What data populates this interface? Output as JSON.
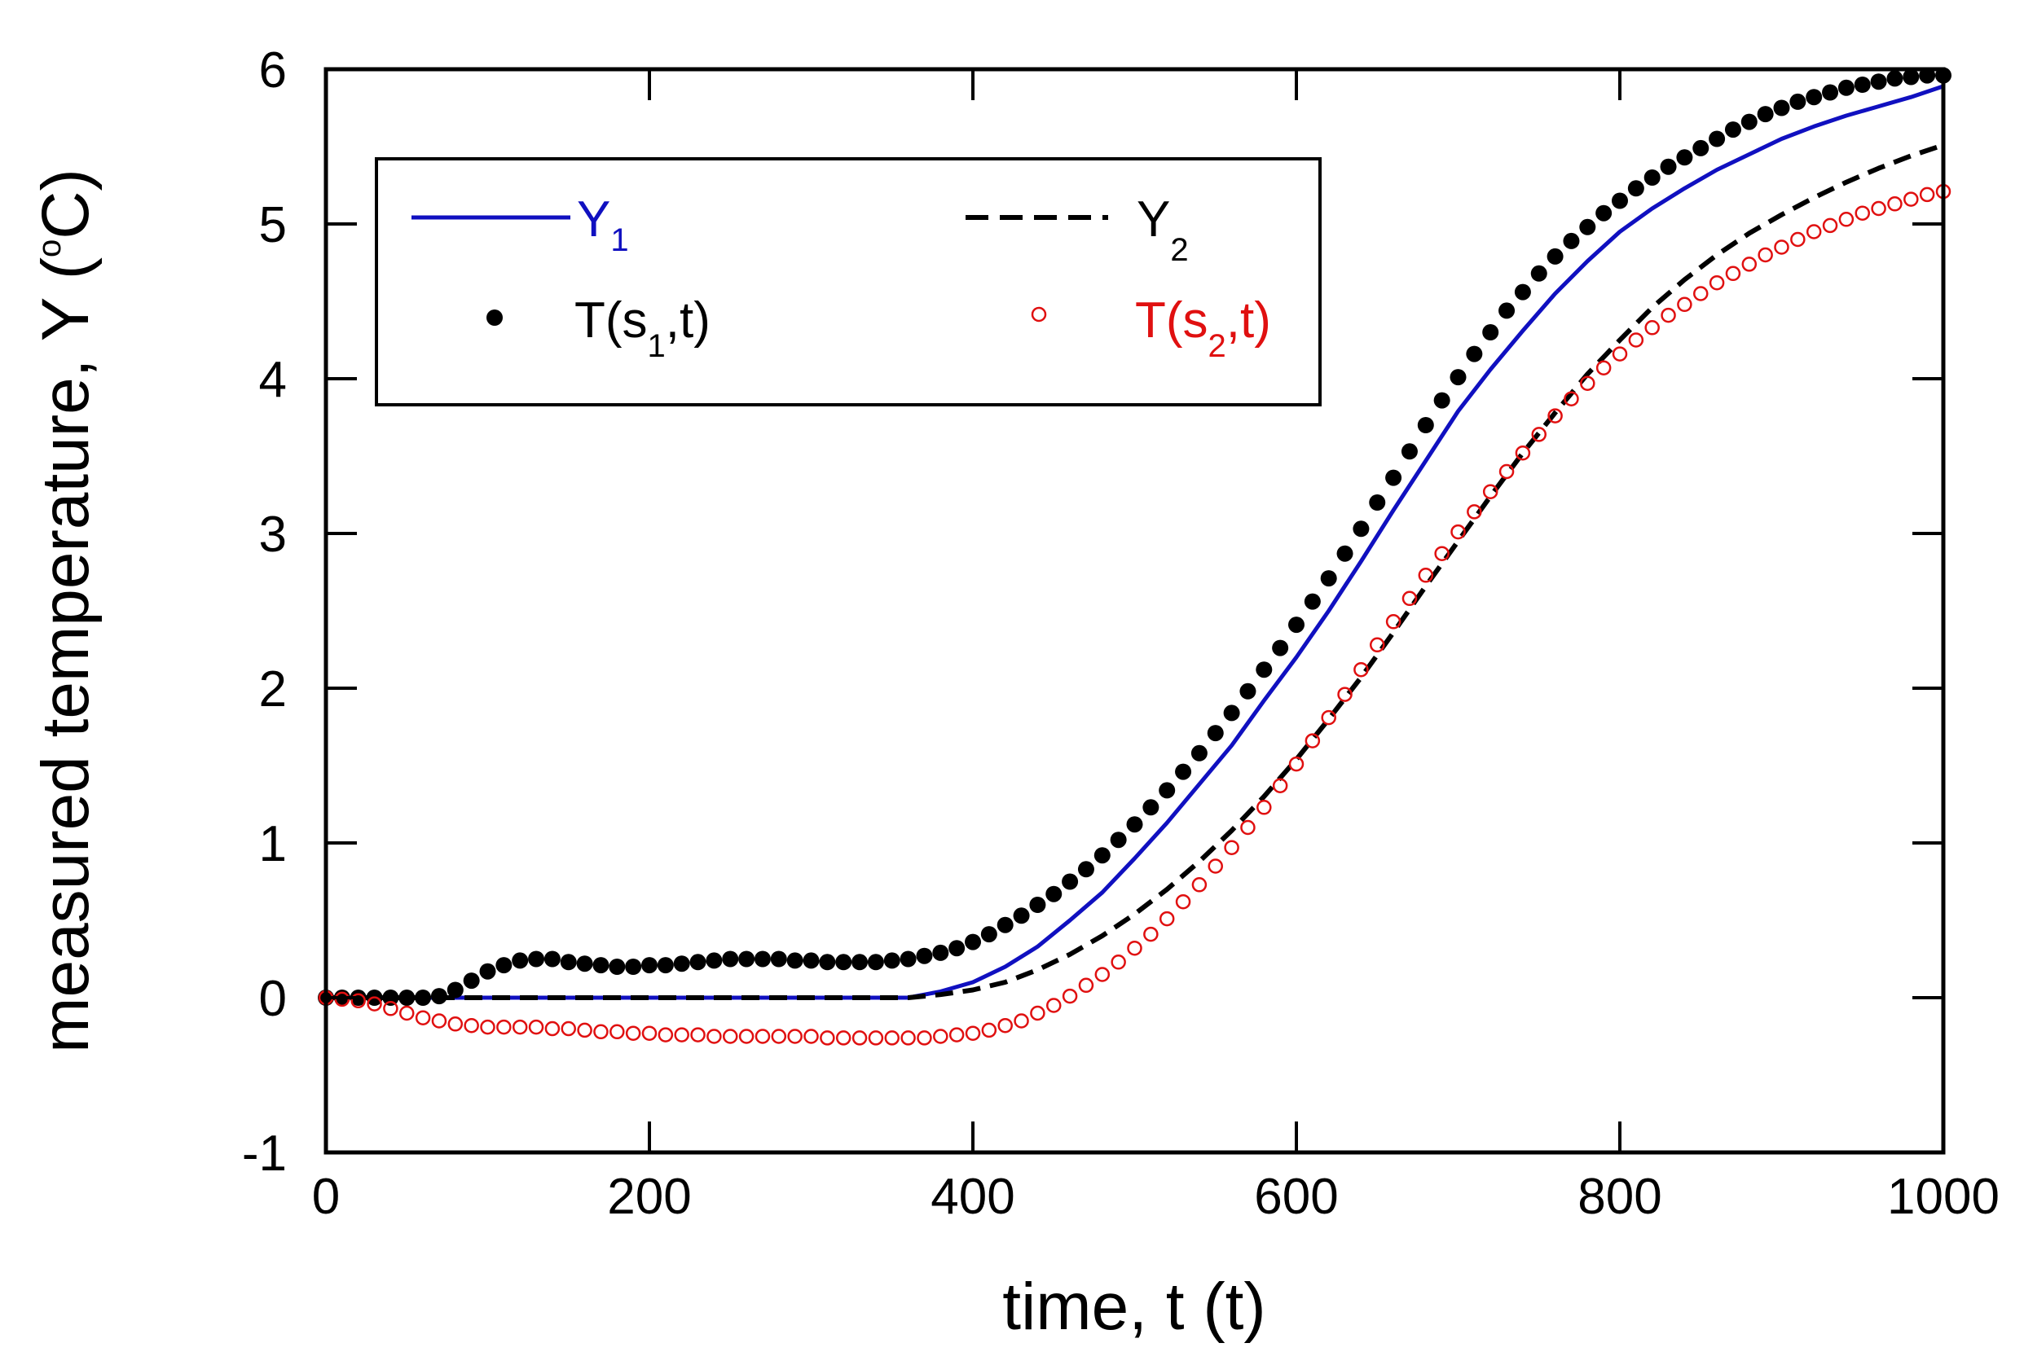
{
  "chart_data": {
    "type": "line",
    "xlabel": "time, t (t)",
    "ylabel": {
      "main": "measured temperature, Y (",
      "sup": "o",
      "unit": "C)"
    },
    "xlim": [
      0,
      1000
    ],
    "ylim": [
      -1,
      6
    ],
    "xticks": [
      0,
      200,
      400,
      600,
      800,
      1000
    ],
    "yticks": [
      -1,
      0,
      1,
      2,
      3,
      4,
      5,
      6
    ],
    "xtick_labels": [
      "0",
      "200",
      "400",
      "600",
      "800",
      "1000"
    ],
    "ytick_labels": [
      "-1",
      "0",
      "1",
      "2",
      "3",
      "4",
      "5",
      "6"
    ],
    "legend_position": "top-left",
    "colors": {
      "y1": "#1010c0",
      "y2": "#000000",
      "t1": "#000000",
      "t2": "#e01010"
    },
    "legend": [
      {
        "key": "y1",
        "base": "Y",
        "sub": "1",
        "tail": "",
        "style": "solid-line",
        "color": "#1010c0"
      },
      {
        "key": "y2",
        "base": "Y",
        "sub": "2",
        "tail": "",
        "style": "dashed-line",
        "color": "#000000"
      },
      {
        "key": "t1",
        "base": "T(s",
        "sub": "1",
        "tail": ",t)",
        "style": "filled-circle",
        "color": "#000000"
      },
      {
        "key": "t2",
        "base": "T(s",
        "sub": "2",
        "tail": ",t)",
        "style": "open-circle",
        "color": "#e01010"
      }
    ],
    "series": [
      {
        "name": "Y1",
        "style": "solid-line",
        "color": "#1010c0",
        "x": [
          0,
          360,
          380,
          400,
          420,
          440,
          460,
          480,
          500,
          520,
          540,
          560,
          580,
          600,
          620,
          640,
          660,
          680,
          700,
          720,
          740,
          760,
          780,
          800,
          820,
          840,
          860,
          880,
          900,
          920,
          940,
          960,
          980,
          1000
        ],
        "y": [
          0,
          0,
          0.04,
          0.1,
          0.2,
          0.33,
          0.5,
          0.68,
          0.9,
          1.13,
          1.38,
          1.63,
          1.92,
          2.2,
          2.5,
          2.82,
          3.15,
          3.47,
          3.79,
          4.06,
          4.31,
          4.55,
          4.76,
          4.95,
          5.1,
          5.23,
          5.35,
          5.45,
          5.55,
          5.63,
          5.7,
          5.76,
          5.82,
          5.89
        ]
      },
      {
        "name": "Y2",
        "style": "dashed-line",
        "color": "#000000",
        "x": [
          0,
          360,
          380,
          400,
          420,
          440,
          460,
          480,
          500,
          520,
          540,
          560,
          580,
          600,
          620,
          640,
          660,
          680,
          700,
          720,
          740,
          760,
          780,
          800,
          820,
          840,
          860,
          880,
          900,
          920,
          940,
          960,
          980,
          1000
        ],
        "y": [
          0,
          0,
          0.02,
          0.05,
          0.1,
          0.18,
          0.28,
          0.4,
          0.54,
          0.7,
          0.88,
          1.08,
          1.3,
          1.54,
          1.8,
          2.07,
          2.36,
          2.66,
          2.95,
          3.24,
          3.52,
          3.78,
          4.03,
          4.25,
          4.46,
          4.64,
          4.8,
          4.94,
          5.06,
          5.17,
          5.27,
          5.36,
          5.44,
          5.51
        ]
      },
      {
        "name": "T(s1,t)",
        "style": "filled-circle",
        "color": "#000000",
        "x": [
          0,
          10,
          20,
          30,
          40,
          50,
          60,
          70,
          80,
          90,
          100,
          110,
          120,
          130,
          140,
          150,
          160,
          170,
          180,
          190,
          200,
          210,
          220,
          230,
          240,
          250,
          260,
          270,
          280,
          290,
          300,
          310,
          320,
          330,
          340,
          350,
          360,
          370,
          380,
          390,
          400,
          410,
          420,
          430,
          440,
          450,
          460,
          470,
          480,
          490,
          500,
          510,
          520,
          530,
          540,
          550,
          560,
          570,
          580,
          590,
          600,
          610,
          620,
          630,
          640,
          650,
          660,
          670,
          680,
          690,
          700,
          710,
          720,
          730,
          740,
          750,
          760,
          770,
          780,
          790,
          800,
          810,
          820,
          830,
          840,
          850,
          860,
          870,
          880,
          890,
          900,
          910,
          920,
          930,
          940,
          950,
          960,
          970,
          980,
          990,
          1000
        ],
        "y": [
          0,
          0,
          0,
          0,
          0,
          0,
          0,
          0.01,
          0.05,
          0.11,
          0.17,
          0.21,
          0.24,
          0.25,
          0.25,
          0.23,
          0.22,
          0.21,
          0.2,
          0.2,
          0.21,
          0.21,
          0.22,
          0.23,
          0.24,
          0.25,
          0.25,
          0.25,
          0.25,
          0.24,
          0.24,
          0.23,
          0.23,
          0.23,
          0.23,
          0.24,
          0.25,
          0.27,
          0.29,
          0.32,
          0.36,
          0.41,
          0.47,
          0.53,
          0.6,
          0.67,
          0.75,
          0.83,
          0.92,
          1.02,
          1.12,
          1.23,
          1.34,
          1.46,
          1.58,
          1.71,
          1.84,
          1.98,
          2.12,
          2.26,
          2.41,
          2.56,
          2.71,
          2.87,
          3.03,
          3.2,
          3.36,
          3.53,
          3.7,
          3.86,
          4.01,
          4.16,
          4.3,
          4.44,
          4.56,
          4.68,
          4.79,
          4.89,
          4.98,
          5.07,
          5.15,
          5.23,
          5.3,
          5.37,
          5.43,
          5.49,
          5.55,
          5.61,
          5.66,
          5.71,
          5.75,
          5.79,
          5.82,
          5.85,
          5.88,
          5.9,
          5.92,
          5.94,
          5.95,
          5.96,
          5.96
        ]
      },
      {
        "name": "T(s2,t)",
        "style": "open-circle",
        "color": "#e01010",
        "x": [
          0,
          10,
          20,
          30,
          40,
          50,
          60,
          70,
          80,
          90,
          100,
          110,
          120,
          130,
          140,
          150,
          160,
          170,
          180,
          190,
          200,
          210,
          220,
          230,
          240,
          250,
          260,
          270,
          280,
          290,
          300,
          310,
          320,
          330,
          340,
          350,
          360,
          370,
          380,
          390,
          400,
          410,
          420,
          430,
          440,
          450,
          460,
          470,
          480,
          490,
          500,
          510,
          520,
          530,
          540,
          550,
          560,
          570,
          580,
          590,
          600,
          610,
          620,
          630,
          640,
          650,
          660,
          670,
          680,
          690,
          700,
          710,
          720,
          730,
          740,
          750,
          760,
          770,
          780,
          790,
          800,
          810,
          820,
          830,
          840,
          850,
          860,
          870,
          880,
          890,
          900,
          910,
          920,
          930,
          940,
          950,
          960,
          970,
          980,
          990,
          1000
        ],
        "y": [
          0,
          -0.01,
          -0.02,
          -0.04,
          -0.07,
          -0.1,
          -0.13,
          -0.15,
          -0.17,
          -0.18,
          -0.19,
          -0.19,
          -0.19,
          -0.19,
          -0.2,
          -0.2,
          -0.21,
          -0.22,
          -0.22,
          -0.23,
          -0.23,
          -0.24,
          -0.24,
          -0.24,
          -0.25,
          -0.25,
          -0.25,
          -0.25,
          -0.25,
          -0.25,
          -0.25,
          -0.26,
          -0.26,
          -0.26,
          -0.26,
          -0.26,
          -0.26,
          -0.26,
          -0.25,
          -0.24,
          -0.23,
          -0.21,
          -0.18,
          -0.15,
          -0.1,
          -0.05,
          0.01,
          0.08,
          0.15,
          0.23,
          0.32,
          0.41,
          0.51,
          0.62,
          0.73,
          0.85,
          0.97,
          1.1,
          1.23,
          1.37,
          1.51,
          1.66,
          1.81,
          1.96,
          2.12,
          2.28,
          2.43,
          2.58,
          2.73,
          2.87,
          3.01,
          3.14,
          3.27,
          3.4,
          3.52,
          3.64,
          3.76,
          3.87,
          3.97,
          4.07,
          4.16,
          4.25,
          4.33,
          4.41,
          4.48,
          4.55,
          4.62,
          4.68,
          4.74,
          4.8,
          4.85,
          4.9,
          4.95,
          4.99,
          5.03,
          5.07,
          5.1,
          5.13,
          5.16,
          5.19,
          5.21
        ]
      }
    ]
  }
}
